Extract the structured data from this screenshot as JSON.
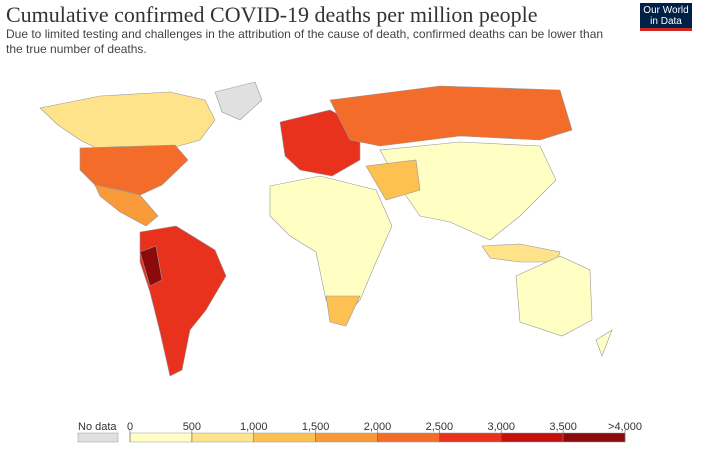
{
  "header": {
    "title": "Cumulative confirmed COVID-19 deaths per million people",
    "subtitle": "Due to limited testing and challenges in the attribution of the cause of death, confirmed deaths can be lower than the true number of deaths.",
    "logo": "Our World in Data"
  },
  "legend": {
    "no_data_label": "No data",
    "no_data_color": "#e0e0e0",
    "ticks": [
      0,
      500,
      {
        "value": 1000,
        "label": "1,000"
      },
      {
        "value": 1500,
        "label": "1,500"
      },
      {
        "value": 2000,
        "label": "2,000"
      },
      {
        "value": 2500,
        "label": "2,500"
      },
      {
        "value": 3000,
        "label": "3,000"
      },
      {
        "value": 3500,
        "label": "3,500"
      },
      {
        "value": 4000,
        "label": ">4,000"
      }
    ],
    "colors": [
      "#ffffc4",
      "#fee38a",
      "#fdc152",
      "#f89a3a",
      "#f36c2a",
      "#e8321e",
      "#c7100c",
      "#8b0a0a"
    ]
  }
}
